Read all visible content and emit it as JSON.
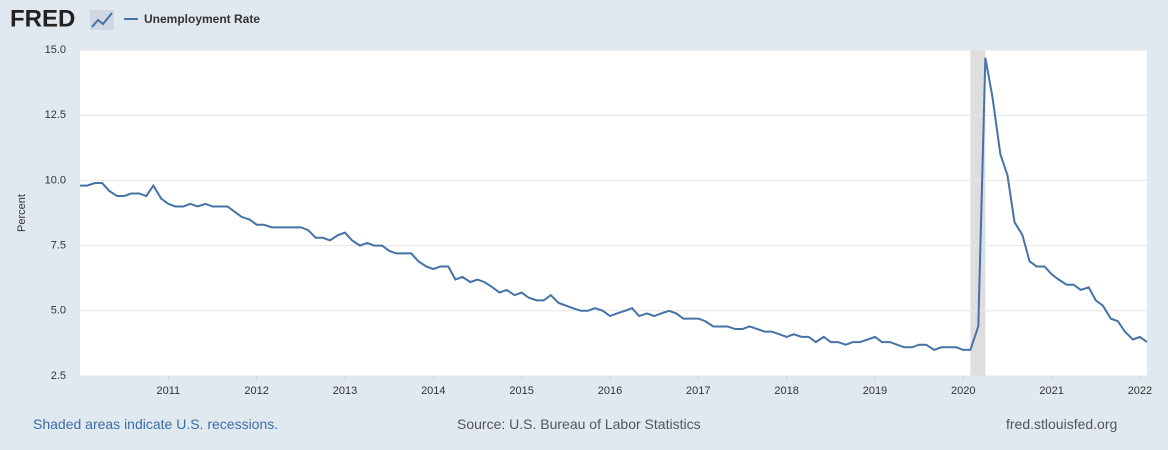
{
  "logo": "FRED",
  "footer": {
    "left": "Shaded areas indicate U.S. recessions.",
    "center": "Source: U.S. Bureau of Labor Statistics",
    "right": "fred.stlouisfed.org"
  },
  "chart_data": {
    "type": "line",
    "ylabel": "Percent",
    "x": [
      2010.0,
      2010.08,
      2010.17,
      2010.25,
      2010.33,
      2010.42,
      2010.5,
      2010.58,
      2010.67,
      2010.75,
      2010.83,
      2010.92,
      2011.0,
      2011.08,
      2011.17,
      2011.25,
      2011.33,
      2011.42,
      2011.5,
      2011.58,
      2011.67,
      2011.75,
      2011.83,
      2011.92,
      2012.0,
      2012.08,
      2012.17,
      2012.25,
      2012.33,
      2012.42,
      2012.5,
      2012.58,
      2012.67,
      2012.75,
      2012.83,
      2012.92,
      2013.0,
      2013.08,
      2013.17,
      2013.25,
      2013.33,
      2013.42,
      2013.5,
      2013.58,
      2013.67,
      2013.75,
      2013.83,
      2013.92,
      2014.0,
      2014.08,
      2014.17,
      2014.25,
      2014.33,
      2014.42,
      2014.5,
      2014.58,
      2014.67,
      2014.75,
      2014.83,
      2014.92,
      2015.0,
      2015.08,
      2015.17,
      2015.25,
      2015.33,
      2015.42,
      2015.5,
      2015.58,
      2015.67,
      2015.75,
      2015.83,
      2015.92,
      2016.0,
      2016.08,
      2016.17,
      2016.25,
      2016.33,
      2016.42,
      2016.5,
      2016.58,
      2016.67,
      2016.75,
      2016.83,
      2016.92,
      2017.0,
      2017.08,
      2017.17,
      2017.25,
      2017.33,
      2017.42,
      2017.5,
      2017.58,
      2017.67,
      2017.75,
      2017.83,
      2017.92,
      2018.0,
      2018.08,
      2018.17,
      2018.25,
      2018.33,
      2018.42,
      2018.5,
      2018.58,
      2018.67,
      2018.75,
      2018.83,
      2018.92,
      2019.0,
      2019.08,
      2019.17,
      2019.25,
      2019.33,
      2019.42,
      2019.5,
      2019.58,
      2019.67,
      2019.75,
      2019.83,
      2019.92,
      2020.0,
      2020.08,
      2020.17,
      2020.25,
      2020.33,
      2020.42,
      2020.5,
      2020.58,
      2020.67,
      2020.75,
      2020.83,
      2020.92,
      2021.0,
      2021.08,
      2021.17,
      2021.25,
      2021.33,
      2021.42,
      2021.5,
      2021.58,
      2021.67,
      2021.75,
      2021.83,
      2021.92,
      2022.0,
      2022.08
    ],
    "series": [
      {
        "name": "Unemployment Rate",
        "color": "#4572a7",
        "values": [
          9.8,
          9.8,
          9.9,
          9.9,
          9.6,
          9.4,
          9.4,
          9.5,
          9.5,
          9.4,
          9.8,
          9.3,
          9.1,
          9.0,
          9.0,
          9.1,
          9.0,
          9.1,
          9.0,
          9.0,
          9.0,
          8.8,
          8.6,
          8.5,
          8.3,
          8.3,
          8.2,
          8.2,
          8.2,
          8.2,
          8.2,
          8.1,
          7.8,
          7.8,
          7.7,
          7.9,
          8.0,
          7.7,
          7.5,
          7.6,
          7.5,
          7.5,
          7.3,
          7.2,
          7.2,
          7.2,
          6.9,
          6.7,
          6.6,
          6.7,
          6.7,
          6.2,
          6.3,
          6.1,
          6.2,
          6.1,
          5.9,
          5.7,
          5.8,
          5.6,
          5.7,
          5.5,
          5.4,
          5.4,
          5.6,
          5.3,
          5.2,
          5.1,
          5.0,
          5.0,
          5.1,
          5.0,
          4.8,
          4.9,
          5.0,
          5.1,
          4.8,
          4.9,
          4.8,
          4.9,
          5.0,
          4.9,
          4.7,
          4.7,
          4.7,
          4.6,
          4.4,
          4.4,
          4.4,
          4.3,
          4.3,
          4.4,
          4.3,
          4.2,
          4.2,
          4.1,
          4.0,
          4.1,
          4.0,
          4.0,
          3.8,
          4.0,
          3.8,
          3.8,
          3.7,
          3.8,
          3.8,
          3.9,
          4.0,
          3.8,
          3.8,
          3.7,
          3.6,
          3.6,
          3.7,
          3.7,
          3.5,
          3.6,
          3.6,
          3.6,
          3.5,
          3.5,
          4.4,
          14.7,
          13.2,
          11.0,
          10.2,
          8.4,
          7.9,
          6.9,
          6.7,
          6.7,
          6.4,
          6.2,
          6.0,
          6.0,
          5.8,
          5.9,
          5.4,
          5.2,
          4.7,
          4.6,
          4.2,
          3.9,
          4.0,
          3.8
        ]
      }
    ],
    "xlim": [
      2010,
      2022.08
    ],
    "xticks": [
      2011,
      2012,
      2013,
      2014,
      2015,
      2016,
      2017,
      2018,
      2019,
      2020,
      2021,
      2022
    ],
    "ylim": [
      2.5,
      15
    ],
    "yticks": [
      2.5,
      {
        "value": 5,
        "label": "5.0"
      },
      7.5,
      {
        "value": 10,
        "label": "10.0"
      },
      12.5,
      {
        "value": 15,
        "label": "15.0"
      }
    ],
    "shaded_ranges": [
      [
        2020.08,
        2020.25
      ]
    ],
    "shade_color": "#dedede",
    "grid": true
  }
}
